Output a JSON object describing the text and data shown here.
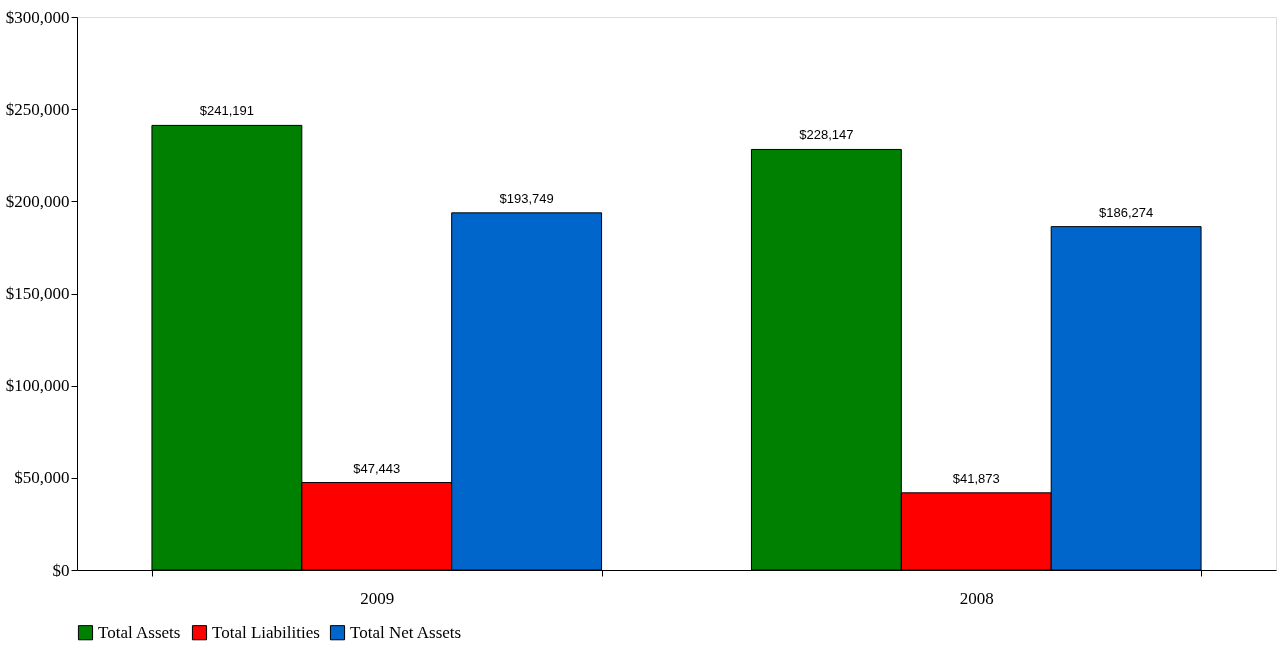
{
  "chart_data": {
    "type": "bar",
    "categories": [
      "2009",
      "2008"
    ],
    "series": [
      {
        "name": "Total Assets",
        "color": "#008000",
        "values": [
          241191,
          228147
        ],
        "value_labels": [
          "$241,191",
          "$228,147"
        ]
      },
      {
        "name": "Total Liabilities",
        "color": "#ff0000",
        "values": [
          47443,
          41873
        ],
        "value_labels": [
          "$47,443",
          "$41,873"
        ]
      },
      {
        "name": "Total Net Assets",
        "color": "#0066cc",
        "values": [
          193749,
          186274
        ],
        "value_labels": [
          "$193,749",
          "$186,274"
        ]
      }
    ],
    "ylim": [
      0,
      300000
    ],
    "yticks": [
      {
        "value": 0,
        "label": "$0"
      },
      {
        "value": 50000,
        "label": "$50,000"
      },
      {
        "value": 100000,
        "label": "$100,000"
      },
      {
        "value": 150000,
        "label": "$150,000"
      },
      {
        "value": 200000,
        "label": "$200,000"
      },
      {
        "value": 250000,
        "label": "$250,000"
      },
      {
        "value": 300000,
        "label": "$300,000"
      }
    ],
    "grid": false,
    "legend": "bottom"
  }
}
